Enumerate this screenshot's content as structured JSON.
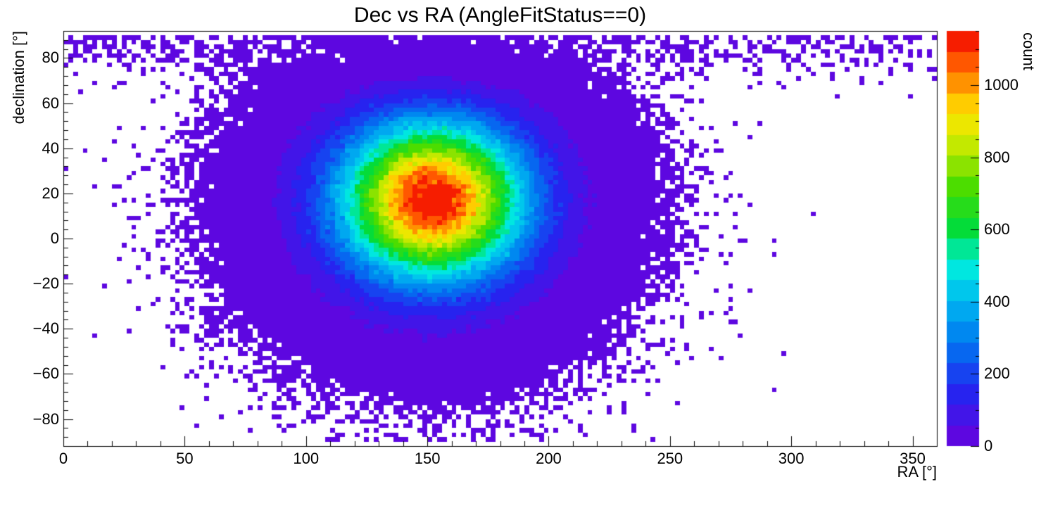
{
  "chart_data": {
    "type": "heatmap",
    "title": "Dec vs RA (AngleFitStatus==0)",
    "xlabel": "RA [°]",
    "ylabel": "declination [°]",
    "zlabel": "count",
    "xlim": [
      0,
      360
    ],
    "ylim": [
      -92,
      92
    ],
    "zlim": [
      0,
      1150
    ],
    "bin_size_deg": 2,
    "n_color_levels": 20,
    "grid": false,
    "background": "#ffffff",
    "frame_color": "#000000",
    "xticks": {
      "major": [
        {
          "value": 0,
          "label": "0"
        },
        {
          "value": 50,
          "label": "50"
        },
        {
          "value": 100,
          "label": "100"
        },
        {
          "value": 150,
          "label": "150"
        },
        {
          "value": 200,
          "label": "200"
        },
        {
          "value": 250,
          "label": "250"
        },
        {
          "value": 300,
          "label": "300"
        },
        {
          "value": 350,
          "label": "350"
        }
      ],
      "minor_step": 10
    },
    "yticks": {
      "major": [
        {
          "value": -80,
          "label": "−80"
        },
        {
          "value": -60,
          "label": "−60"
        },
        {
          "value": -40,
          "label": "−40"
        },
        {
          "value": -20,
          "label": "−20"
        },
        {
          "value": 0,
          "label": "0"
        },
        {
          "value": 20,
          "label": "20"
        },
        {
          "value": 40,
          "label": "40"
        },
        {
          "value": 60,
          "label": "60"
        },
        {
          "value": 80,
          "label": "80"
        }
      ],
      "minor_step": 4
    },
    "zticks": {
      "major": [
        {
          "value": 0,
          "label": "0"
        },
        {
          "value": 200,
          "label": "200"
        },
        {
          "value": 400,
          "label": "400"
        },
        {
          "value": 600,
          "label": "600"
        },
        {
          "value": 800,
          "label": "800"
        },
        {
          "value": 1000,
          "label": "1000"
        }
      ],
      "minor_step": 50
    },
    "palette_stops": [
      [
        0.0,
        "#6A00DC"
      ],
      [
        0.13,
        "#2424F0"
      ],
      [
        0.25,
        "#0078F0"
      ],
      [
        0.36,
        "#00BEF0"
      ],
      [
        0.44,
        "#00F0DC"
      ],
      [
        0.52,
        "#00DC3C"
      ],
      [
        0.62,
        "#46DC00"
      ],
      [
        0.7,
        "#AAE600"
      ],
      [
        0.76,
        "#E6EE00"
      ],
      [
        0.82,
        "#FFD200"
      ],
      [
        0.88,
        "#FF8C00"
      ],
      [
        0.94,
        "#FF4600"
      ],
      [
        1.0,
        "#F00000"
      ]
    ],
    "density_model": {
      "description": "2D histogram of reconstructed sky positions: dense quasi-Gaussian blob centered near RA 150, Dec +18 (peak ~1150 counts/bin), fading through rainbow levels to sparse violet speckle; additional sparse speckle band at high declination (dec > ~65) across all RA",
      "seed": 42,
      "noise": "poisson",
      "core": {
        "peak": 1150,
        "center_ra": 152,
        "center_dec": 17,
        "sigma_ra": 26,
        "sigma_dec": 24,
        "taper_dec": 74,
        "taper_width": 6
      },
      "halo": {
        "peak": 15,
        "center_ra": 150,
        "center_dec": 8,
        "sigma_ra": 38,
        "sigma_dec": 34
      },
      "polar_band": {
        "peak": 1.35,
        "sigma_dec": 10,
        "ra_base": 0.35,
        "ra_mod": 0.75,
        "ra_center": 152,
        "ra_sigma": 75
      }
    },
    "peak": {
      "ra": 150,
      "dec": 18,
      "count": 1150
    }
  }
}
